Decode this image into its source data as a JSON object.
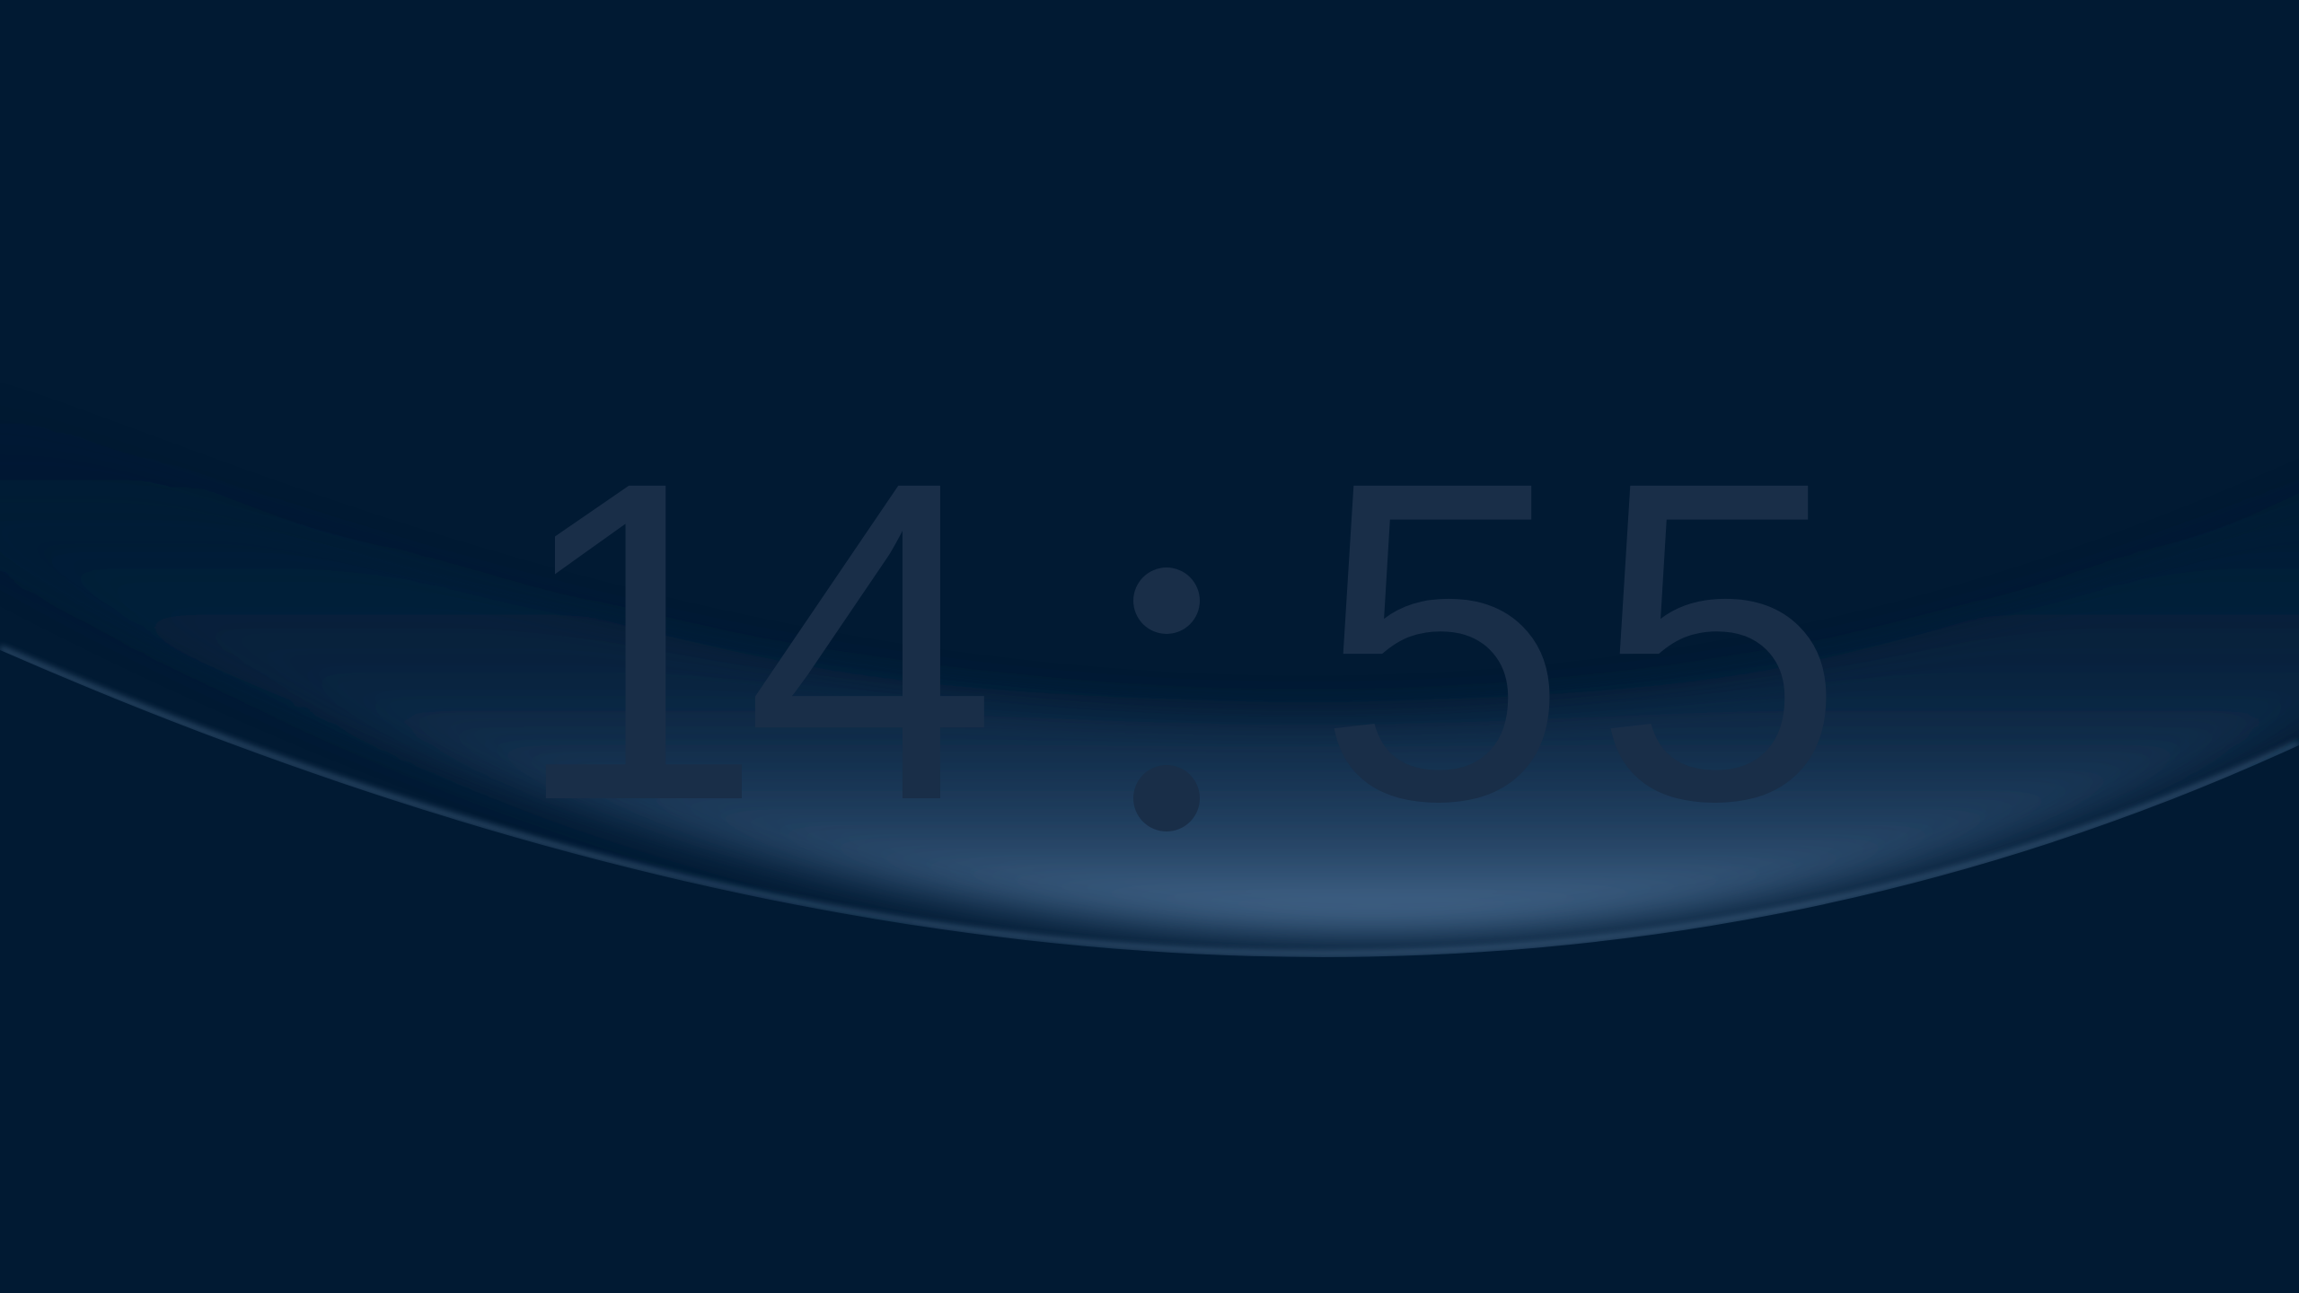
{
  "clock": {
    "time": "14:55",
    "hour_tens": "1",
    "hour_ones": "4",
    "separator": ":",
    "minute_tens": "5",
    "minute_ones": "5"
  },
  "colors": {
    "background": "#011a33",
    "digit": "#192e48",
    "horizon_glow": "#4a6d92"
  }
}
